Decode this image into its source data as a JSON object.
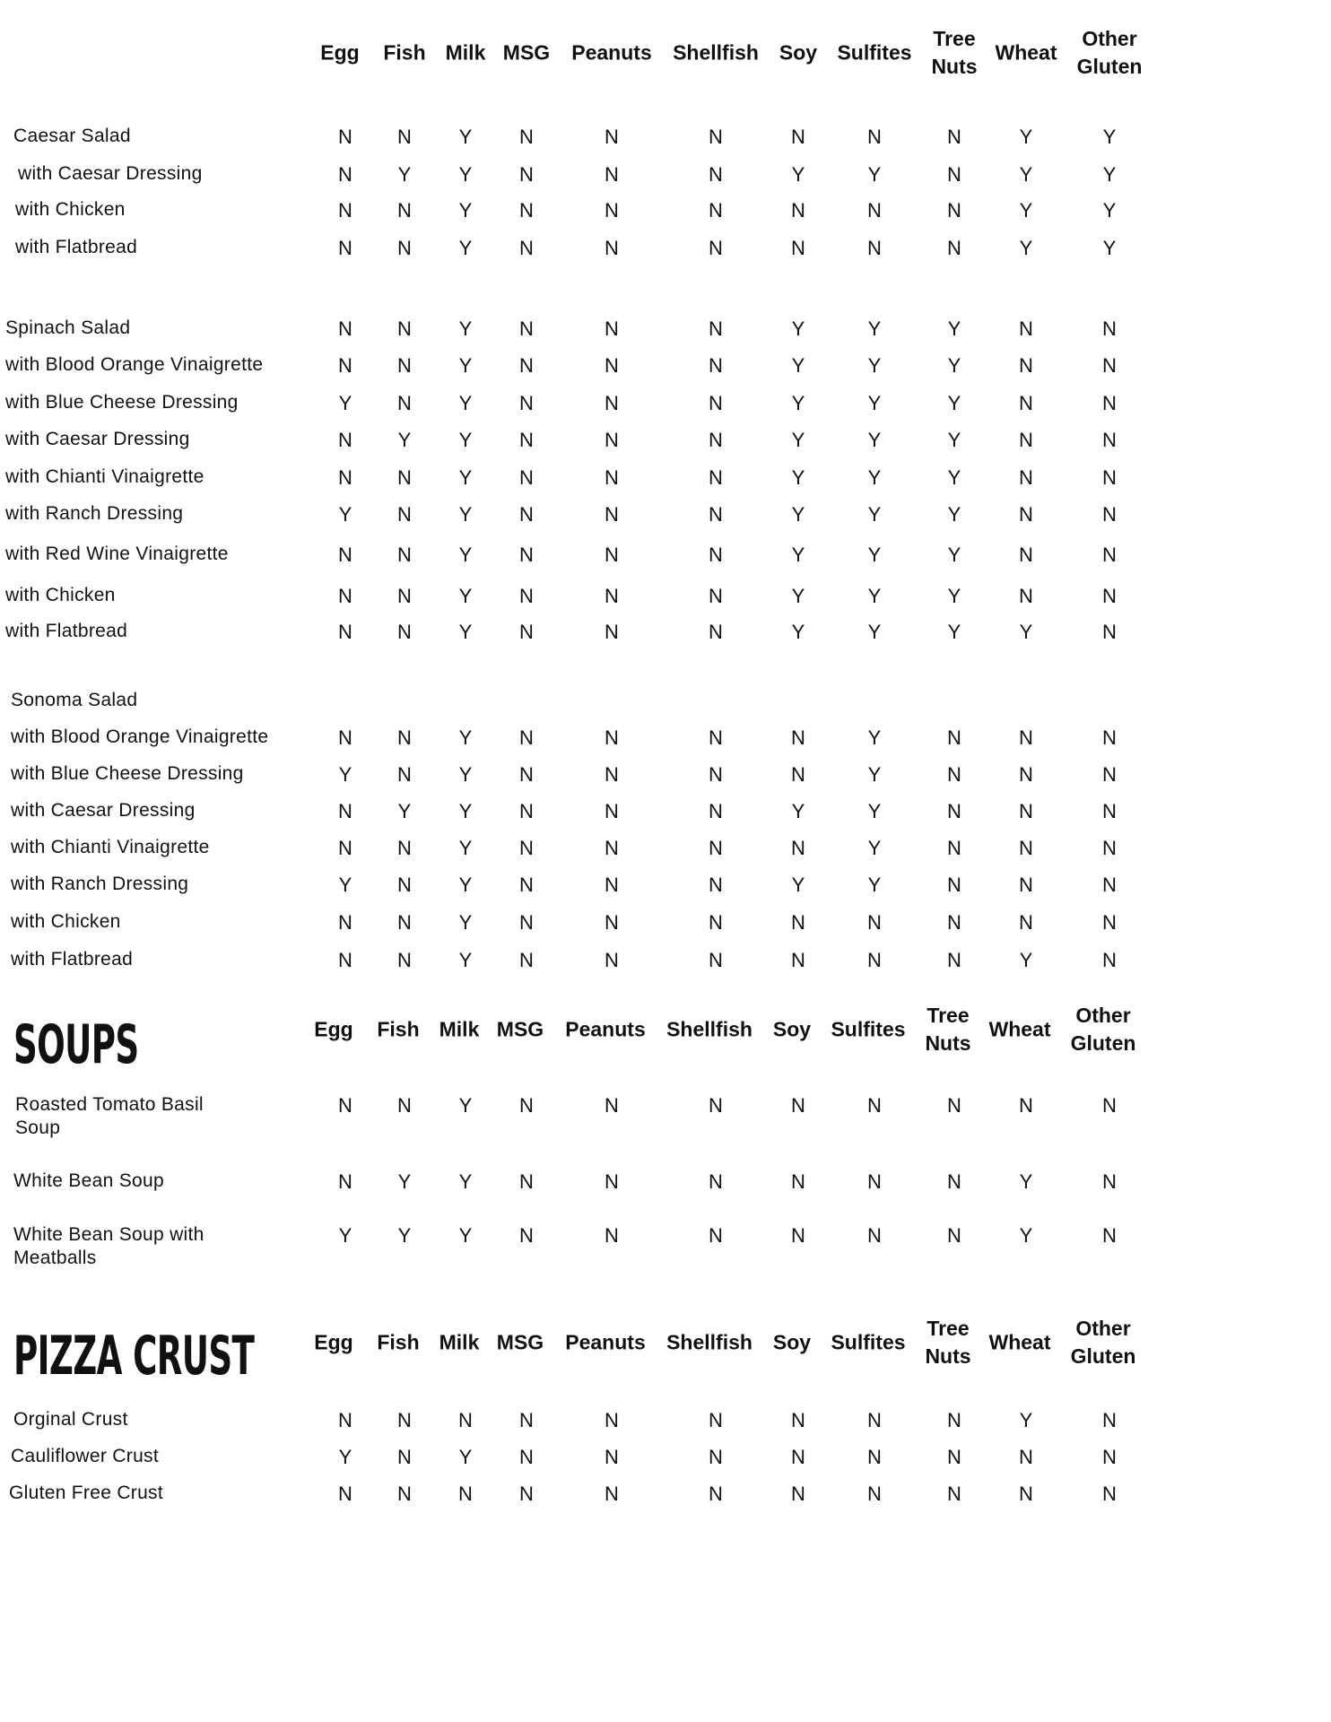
{
  "columns": [
    "Egg",
    "Fish",
    "Milk",
    "MSG",
    "Peanuts",
    "Shellfish",
    "Soy",
    "Sulfites",
    "Tree\nNuts",
    "Wheat",
    "Other\nGluten"
  ],
  "sections": [
    {
      "title": "",
      "rows": [
        {
          "label": "Caesar Salad",
          "values": [
            "N",
            "N",
            "Y",
            "N",
            "N",
            "N",
            "N",
            "N",
            "N",
            "Y",
            "Y"
          ]
        },
        {
          "label": "with Caesar Dressing",
          "values": [
            "N",
            "Y",
            "Y",
            "N",
            "N",
            "N",
            "Y",
            "Y",
            "N",
            "Y",
            "Y"
          ]
        },
        {
          "label": "with Chicken",
          "values": [
            "N",
            "N",
            "Y",
            "N",
            "N",
            "N",
            "N",
            "N",
            "N",
            "Y",
            "Y"
          ]
        },
        {
          "label": "with Flatbread",
          "values": [
            "N",
            "N",
            "Y",
            "N",
            "N",
            "N",
            "N",
            "N",
            "N",
            "Y",
            "Y"
          ]
        },
        {
          "label": "Spinach Salad",
          "values": [
            "N",
            "N",
            "Y",
            "N",
            "N",
            "N",
            "Y",
            "Y",
            "Y",
            "N",
            "N"
          ]
        },
        {
          "label": "with Blood Orange Vinaigrette",
          "values": [
            "N",
            "N",
            "Y",
            "N",
            "N",
            "N",
            "Y",
            "Y",
            "Y",
            "N",
            "N"
          ]
        },
        {
          "label": "with Blue Cheese Dressing",
          "values": [
            "Y",
            "N",
            "Y",
            "N",
            "N",
            "N",
            "Y",
            "Y",
            "Y",
            "N",
            "N"
          ]
        },
        {
          "label": "with Caesar Dressing",
          "values": [
            "N",
            "Y",
            "Y",
            "N",
            "N",
            "N",
            "Y",
            "Y",
            "Y",
            "N",
            "N"
          ]
        },
        {
          "label": "with Chianti Vinaigrette",
          "values": [
            "N",
            "N",
            "Y",
            "N",
            "N",
            "N",
            "Y",
            "Y",
            "Y",
            "N",
            "N"
          ]
        },
        {
          "label": "with Ranch Dressing",
          "values": [
            "Y",
            "N",
            "Y",
            "N",
            "N",
            "N",
            "Y",
            "Y",
            "Y",
            "N",
            "N"
          ]
        },
        {
          "label": "with Red Wine Vinaigrette",
          "values": [
            "N",
            "N",
            "Y",
            "N",
            "N",
            "N",
            "Y",
            "Y",
            "Y",
            "N",
            "N"
          ]
        },
        {
          "label": "with Chicken",
          "values": [
            "N",
            "N",
            "Y",
            "N",
            "N",
            "N",
            "Y",
            "Y",
            "Y",
            "N",
            "N"
          ]
        },
        {
          "label": "with Flatbread",
          "values": [
            "N",
            "N",
            "Y",
            "N",
            "N",
            "N",
            "Y",
            "Y",
            "Y",
            "Y",
            "N"
          ]
        },
        {
          "label": "Sonoma Salad",
          "values": []
        },
        {
          "label": "with Blood Orange Vinaigrette",
          "values": [
            "N",
            "N",
            "Y",
            "N",
            "N",
            "N",
            "N",
            "Y",
            "N",
            "N",
            "N"
          ]
        },
        {
          "label": "with Blue Cheese Dressing",
          "values": [
            "Y",
            "N",
            "Y",
            "N",
            "N",
            "N",
            "N",
            "Y",
            "N",
            "N",
            "N"
          ]
        },
        {
          "label": "with Caesar Dressing",
          "values": [
            "N",
            "Y",
            "Y",
            "N",
            "N",
            "N",
            "Y",
            "Y",
            "N",
            "N",
            "N"
          ]
        },
        {
          "label": "with Chianti Vinaigrette",
          "values": [
            "N",
            "N",
            "Y",
            "N",
            "N",
            "N",
            "N",
            "Y",
            "N",
            "N",
            "N"
          ]
        },
        {
          "label": "with Ranch Dressing",
          "values": [
            "Y",
            "N",
            "Y",
            "N",
            "N",
            "N",
            "Y",
            "Y",
            "N",
            "N",
            "N"
          ]
        },
        {
          "label": "with Chicken",
          "values": [
            "N",
            "N",
            "Y",
            "N",
            "N",
            "N",
            "N",
            "N",
            "N",
            "N",
            "N"
          ]
        },
        {
          "label": "with Flatbread",
          "values": [
            "N",
            "N",
            "Y",
            "N",
            "N",
            "N",
            "N",
            "N",
            "N",
            "Y",
            "N"
          ]
        }
      ]
    },
    {
      "title": "SOUPS",
      "rows": [
        {
          "label": "Roasted Tomato Basil\nSoup",
          "values": [
            "N",
            "N",
            "Y",
            "N",
            "N",
            "N",
            "N",
            "N",
            "N",
            "N",
            "N"
          ]
        },
        {
          "label": "White Bean Soup",
          "values": [
            "N",
            "Y",
            "Y",
            "N",
            "N",
            "N",
            "N",
            "N",
            "N",
            "Y",
            "N"
          ]
        },
        {
          "label": "White Bean Soup with\nMeatballs",
          "values": [
            "Y",
            "Y",
            "Y",
            "N",
            "N",
            "N",
            "N",
            "N",
            "N",
            "Y",
            "N"
          ]
        }
      ]
    },
    {
      "title": "PIZZA CRUST",
      "rows": [
        {
          "label": "Orginal Crust",
          "values": [
            "N",
            "N",
            "N",
            "N",
            "N",
            "N",
            "N",
            "N",
            "N",
            "Y",
            "N"
          ]
        },
        {
          "label": "Cauliflower Crust",
          "values": [
            "Y",
            "N",
            "Y",
            "N",
            "N",
            "N",
            "N",
            "N",
            "N",
            "N",
            "N"
          ]
        },
        {
          "label": "Gluten Free Crust",
          "values": [
            "N",
            "N",
            "N",
            "N",
            "N",
            "N",
            "N",
            "N",
            "N",
            "N",
            "N"
          ]
        }
      ]
    }
  ]
}
